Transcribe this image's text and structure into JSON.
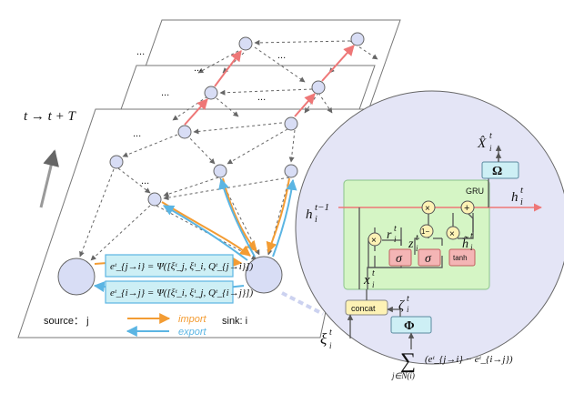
{
  "time_label": "t → t + T",
  "dots": "...",
  "eq_import": {
    "lhs": "e",
    "sup": "t",
    "sub": "j→i",
    "rhs": " = Ψ([ξ",
    "rhs_tail": "t j, ξ t i, Q t j→i])"
  },
  "eq_import_text": "eᵗ_{j→i} = Ψ([ξᵗ_j, ξᵗ_i, Qᵗ_{j→i}])",
  "eq_export_text": "eᵗ_{i→j} = Ψ([ξᵗ_i, ξᵗ_j, Qᵗ_{i→j}])",
  "source_label": "source： j",
  "sink_label": "sink: i",
  "legend": {
    "import": "import",
    "export": "export"
  },
  "colors": {
    "import": "#F39C33",
    "export": "#5BB5E3",
    "highlight": "#EE7777",
    "node": "#D8DDF5",
    "gru": "#D5F5C5",
    "box": "#CDEFF5",
    "gate": "#F4B5B5",
    "op": "#FDF2B5",
    "circle": "#E4E5F6"
  },
  "gru": {
    "title": "GRU",
    "h_prev": "h",
    "h_prev_sup": "t−1",
    "h_prev_sub": "i",
    "h_out": "h",
    "h_out_sup": "t",
    "h_out_sub": "i",
    "x": "x",
    "x_sup": "t",
    "x_sub": "i",
    "r": "r",
    "r_sup": "t",
    "r_sub": "i",
    "z": "z",
    "z_sup": "t",
    "z_sub": "i",
    "h_tilde": "h̃",
    "h_tilde_sup": "t",
    "h_tilde_sub": "i",
    "sigma": "σ",
    "tanh": "tanh",
    "times": "×",
    "plus": "+",
    "one_minus": "1−"
  },
  "omega": "Ω",
  "x_hat": "X̂",
  "x_hat_sup": "t",
  "x_hat_sub": "i",
  "concat": "concat",
  "phi": "Φ",
  "zeta": "ζ",
  "zeta_sup": "t",
  "zeta_sub": "i",
  "xi": "ξ",
  "xi_sup": "t",
  "xi_sub": "i",
  "sum_symbol": "∑",
  "sum_under": "j∈N(i)",
  "sum_expr": "(eᵗ_{j→i} − eᵗ_{i→j})"
}
